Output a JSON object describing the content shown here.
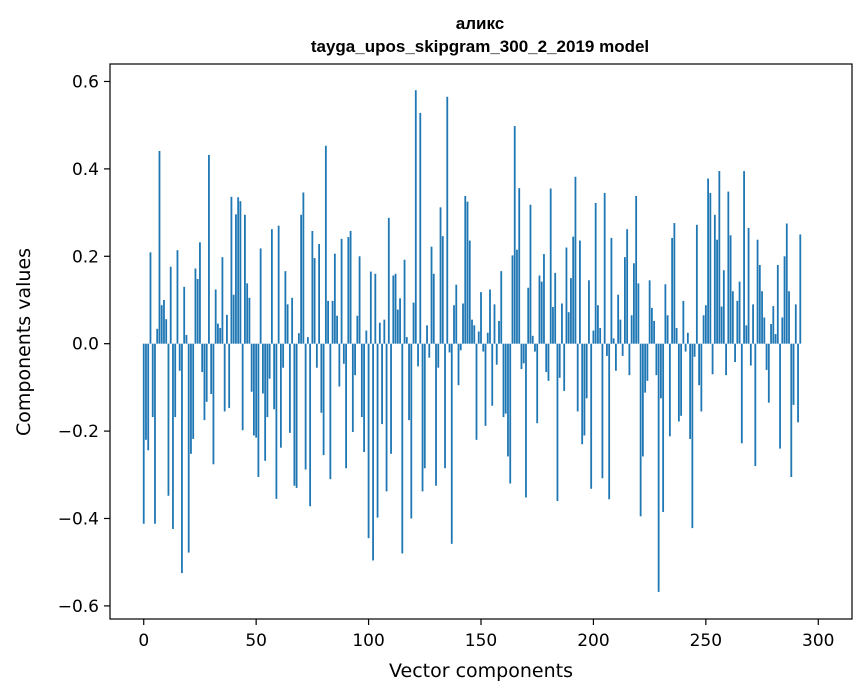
{
  "chart_data": {
    "type": "bar",
    "title": "аликс",
    "subtitle": "tayga_upos_skipgram_300_2_2019 model",
    "xlabel": "Vector components",
    "ylabel": "Components values",
    "xlim": [
      -15,
      315
    ],
    "ylim": [
      -0.63,
      0.64
    ],
    "xticks": [
      0,
      50,
      100,
      150,
      200,
      250,
      300
    ],
    "yticks": [
      -0.6,
      -0.4,
      -0.2,
      0.0,
      0.2,
      0.4,
      0.6
    ],
    "xtick_labels": [
      "0",
      "50",
      "100",
      "150",
      "200",
      "250",
      "300"
    ],
    "ytick_labels": [
      "−0.6",
      "−0.4",
      "−0.2",
      "0.0",
      "0.2",
      "0.4",
      "0.6"
    ],
    "grid": false,
    "bar_color": "#1f77b4",
    "values": [
      -0.412,
      -0.22,
      -0.244,
      0.209,
      -0.168,
      -0.412,
      0.034,
      0.441,
      0.088,
      0.1,
      0.056,
      -0.348,
      0.176,
      -0.424,
      -0.168,
      0.214,
      -0.062,
      -0.525,
      0.13,
      0.02,
      -0.478,
      -0.252,
      -0.218,
      0.172,
      0.148,
      0.232,
      -0.065,
      -0.175,
      -0.133,
      0.432,
      -0.115,
      -0.276,
      0.124,
      0.046,
      0.036,
      0.198,
      -0.155,
      0.066,
      -0.147,
      0.336,
      0.112,
      0.296,
      0.335,
      0.326,
      -0.198,
      0.295,
      0.138,
      0.105,
      -0.11,
      -0.21,
      -0.215,
      -0.305,
      0.218,
      -0.114,
      -0.268,
      -0.168,
      -0.08,
      0.262,
      -0.15,
      -0.355,
      0.27,
      -0.238,
      -0.055,
      0.166,
      0.09,
      -0.204,
      0.105,
      -0.325,
      -0.33,
      0.024,
      0.295,
      0.346,
      -0.288,
      0.015,
      -0.372,
      0.258,
      0.196,
      -0.055,
      0.228,
      -0.158,
      -0.255,
      0.453,
      0.098,
      -0.31,
      0.098,
      0.206,
      0.064,
      -0.098,
      0.24,
      -0.046,
      -0.285,
      0.244,
      0.258,
      -0.202,
      -0.072,
      0.064,
      0.2,
      -0.168,
      -0.248,
      0.03,
      -0.445,
      0.165,
      -0.496,
      0.16,
      -0.398,
      0.048,
      -0.184,
      0.055,
      -0.338,
      0.288,
      -0.252,
      0.156,
      0.16,
      0.078,
      0.104,
      -0.48,
      0.192,
      0.015,
      -0.175,
      -0.4,
      0.094,
      0.58,
      -0.052,
      0.528,
      -0.338,
      -0.285,
      0.042,
      -0.032,
      0.222,
      0.16,
      -0.325,
      -0.055,
      0.312,
      0.246,
      -0.285,
      0.565,
      -0.02,
      -0.458,
      0.088,
      0.135,
      -0.095,
      -0.015,
      0.092,
      0.338,
      0.325,
      0.236,
      0.055,
      0.042,
      -0.22,
      0.028,
      0.118,
      -0.018,
      -0.188,
      0.025,
      0.124,
      -0.142,
      0.09,
      -0.048,
      0.052,
      0.166,
      -0.168,
      -0.16,
      -0.258,
      -0.32,
      0.202,
      0.498,
      0.215,
      0.356,
      -0.058,
      -0.045,
      -0.352,
      0.128,
      0.318,
      0.018,
      -0.018,
      -0.182,
      0.156,
      0.142,
      0.205,
      -0.065,
      -0.085,
      0.355,
      0.084,
      0.162,
      -0.36,
      -0.078,
      0.092,
      -0.108,
      0.22,
      0.072,
      0.15,
      0.245,
      0.382,
      -0.155,
      0.236,
      -0.23,
      -0.21,
      -0.125,
      0.145,
      -0.332,
      0.03,
      0.322,
      0.088,
      0.036,
      -0.308,
      0.345,
      -0.028,
      -0.356,
      0.242,
      0.012,
      -0.062,
      0.112,
      0.055,
      -0.028,
      0.198,
      0.262,
      -0.072,
      0.065,
      0.184,
      0.338,
      0.138,
      -0.395,
      -0.258,
      -0.112,
      -0.085,
      0.145,
      0.082,
      0.052,
      -0.072,
      -0.568,
      -0.125,
      -0.385,
      0.136,
      0.065,
      -0.212,
      0.242,
      0.276,
      0.036,
      -0.178,
      -0.165,
      0.098,
      -0.018,
      0.025,
      -0.218,
      -0.422,
      -0.03,
      0.272,
      -0.095,
      -0.155,
      0.065,
      0.088,
      0.378,
      0.345,
      -0.07,
      0.295,
      0.238,
      0.395,
      0.085,
      0.168,
      -0.072,
      0.348,
      0.248,
      0.12,
      -0.042,
      0.098,
      0.142,
      -0.228,
      0.395,
      0.042,
      0.265,
      -0.05,
      0.09,
      -0.28,
      0.238,
      0.18,
      0.12,
      0.06,
      -0.06,
      -0.135,
      0.045,
      0.086,
      0.022,
      0.18,
      -0.24,
      0.06,
      0.2,
      0.275,
      0.12,
      -0.305,
      -0.14,
      0.09,
      -0.18,
      0.25
    ]
  }
}
